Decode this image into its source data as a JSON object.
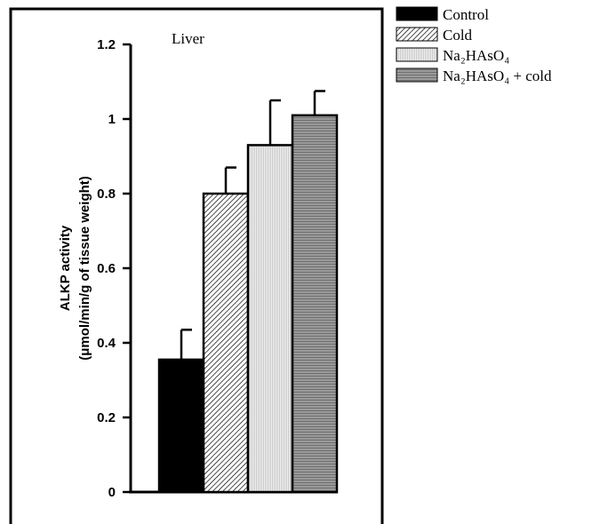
{
  "chart_data": {
    "type": "bar",
    "annotation": "Liver",
    "ylabel_line1": "ALKP activity",
    "ylabel_line2": "(μmol/min/g of tissue weight)",
    "ylim": [
      0,
      1.2
    ],
    "yticks": [
      "0",
      "0.2",
      "0.4",
      "0.6",
      "0.8",
      "1",
      "1.2"
    ],
    "legend_position": "top-right, outside plot",
    "series": [
      {
        "name": "Control",
        "value": 0.355,
        "error": 0.08,
        "fill": "#000000",
        "pattern": "solid"
      },
      {
        "name": "Cold",
        "value": 0.8,
        "error": 0.07,
        "fill": "#ffffff",
        "pattern": "diagonal-hatch"
      },
      {
        "name": "Na₂HAsO₄",
        "value": 0.93,
        "error": 0.12,
        "fill": "#e6e6e6",
        "pattern": "fine-vertical"
      },
      {
        "name": "Na₂HAsO₄ + cold",
        "value": 1.01,
        "error": 0.065,
        "fill": "#8c8c8c",
        "pattern": "horizontal-lines"
      }
    ]
  }
}
